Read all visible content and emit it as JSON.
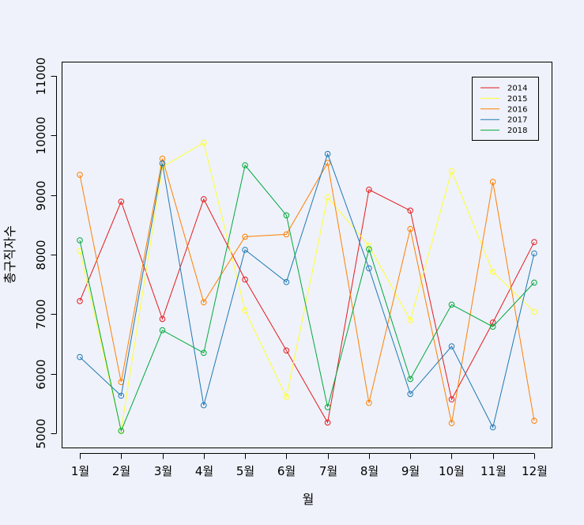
{
  "chart_data": {
    "type": "line",
    "xlabel": "월",
    "ylabel": "총구직자수",
    "categories": [
      "1월",
      "2월",
      "3월",
      "4월",
      "5월",
      "6월",
      "7월",
      "8월",
      "9월",
      "10월",
      "11월",
      "12월"
    ],
    "y_ticks": [
      "5000",
      "6000",
      "7000",
      "8000",
      "9000",
      "10000",
      "11000"
    ],
    "ylim": [
      5000,
      11000
    ],
    "legend_position": "top-right",
    "series": [
      {
        "name": "2014",
        "color": "#e41a1c",
        "values": [
          7220,
          8890,
          6920,
          8930,
          7580,
          6390,
          5180,
          9090,
          8740,
          5570,
          6860,
          8210
        ]
      },
      {
        "name": "2015",
        "color": "#ffff33",
        "values": [
          8060,
          5050,
          9470,
          9880,
          7060,
          5610,
          8960,
          8150,
          6900,
          9400,
          7710,
          7040
        ]
      },
      {
        "name": "2016",
        "color": "#ff7f00",
        "values": [
          9340,
          5860,
          9610,
          7200,
          8300,
          8340,
          9540,
          5510,
          8430,
          5170,
          9220,
          5210
        ]
      },
      {
        "name": "2017",
        "color": "#1f78b4",
        "values": [
          6280,
          5630,
          9530,
          5470,
          8080,
          7540,
          9690,
          7770,
          5660,
          6460,
          5100,
          8020
        ]
      },
      {
        "name": "2018",
        "color": "#00a83c",
        "values": [
          8240,
          5040,
          6730,
          6350,
          9500,
          8660,
          5440,
          8090,
          5910,
          7160,
          6790,
          7530
        ]
      }
    ]
  }
}
